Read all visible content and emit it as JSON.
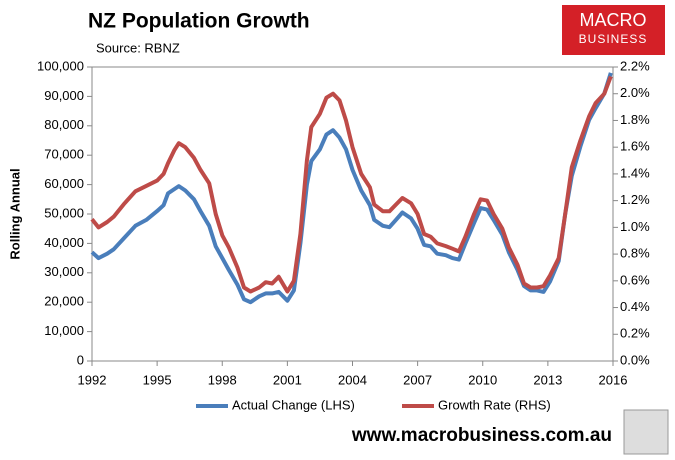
{
  "chart_data": {
    "type": "line",
    "title": "NZ Population Growth",
    "subtitle": "Source: RBNZ",
    "y_label": "Rolling Annual",
    "x": [
      1992.0,
      1992.3,
      1992.7,
      1993.0,
      1993.5,
      1994.0,
      1994.5,
      1995.0,
      1995.3,
      1995.5,
      1995.8,
      1996.0,
      1996.3,
      1996.7,
      1997.0,
      1997.4,
      1997.7,
      1998.0,
      1998.3,
      1998.7,
      1999.0,
      1999.3,
      1999.7,
      2000.0,
      2000.3,
      2000.6,
      2001.0,
      2001.3,
      2001.6,
      2001.9,
      2002.1,
      2002.5,
      2002.8,
      2003.1,
      2003.4,
      2003.7,
      2004.0,
      2004.4,
      2004.8,
      2005.0,
      2005.4,
      2005.7,
      2006.0,
      2006.3,
      2006.7,
      2007.0,
      2007.3,
      2007.6,
      2007.9,
      2008.3,
      2008.6,
      2008.9,
      2009.2,
      2009.6,
      2009.9,
      2010.2,
      2010.5,
      2010.9,
      2011.2,
      2011.6,
      2011.9,
      2012.2,
      2012.5,
      2012.8,
      2013.1,
      2013.5,
      2013.8,
      2014.1,
      2014.5,
      2014.9,
      2015.2,
      2015.6,
      2015.9
    ],
    "series": [
      {
        "name": "Actual Change (LHS)",
        "color": "#4a7ebb",
        "axis": "y",
        "values": [
          37000,
          35000,
          36500,
          38000,
          42000,
          46000,
          48000,
          51000,
          53000,
          57000,
          58500,
          59500,
          58000,
          55000,
          51000,
          46000,
          39000,
          35000,
          31000,
          26000,
          21000,
          20000,
          22000,
          23000,
          23000,
          23500,
          20500,
          24000,
          40000,
          60000,
          68000,
          72000,
          77000,
          78500,
          76000,
          72000,
          65000,
          58000,
          53000,
          48000,
          46000,
          45500,
          48000,
          50500,
          48500,
          45000,
          39500,
          39000,
          36500,
          36000,
          35000,
          34500,
          40000,
          47000,
          52000,
          51500,
          48000,
          43000,
          37000,
          31000,
          25500,
          24000,
          24000,
          23500,
          27000,
          34000,
          50000,
          63000,
          73000,
          82000,
          86000,
          91000,
          98000
        ]
      },
      {
        "name": "Growth Rate (RHS)",
        "color": "#be4b48",
        "axis": "y2",
        "values": [
          1.06,
          1.0,
          1.04,
          1.08,
          1.18,
          1.27,
          1.31,
          1.35,
          1.4,
          1.48,
          1.58,
          1.63,
          1.6,
          1.52,
          1.43,
          1.33,
          1.1,
          0.94,
          0.85,
          0.7,
          0.55,
          0.52,
          0.55,
          0.59,
          0.58,
          0.63,
          0.52,
          0.6,
          0.95,
          1.5,
          1.75,
          1.85,
          1.97,
          2.0,
          1.95,
          1.8,
          1.6,
          1.4,
          1.3,
          1.17,
          1.12,
          1.12,
          1.17,
          1.22,
          1.18,
          1.1,
          0.95,
          0.93,
          0.88,
          0.86,
          0.84,
          0.82,
          0.93,
          1.1,
          1.21,
          1.2,
          1.1,
          0.99,
          0.85,
          0.72,
          0.58,
          0.55,
          0.55,
          0.56,
          0.64,
          0.77,
          1.1,
          1.45,
          1.65,
          1.83,
          1.93,
          2.0,
          2.13
        ]
      }
    ],
    "xlim": [
      1992,
      2016
    ],
    "xticks": [
      1992,
      1995,
      1998,
      2001,
      2004,
      2007,
      2010,
      2013,
      2016
    ],
    "ylim": [
      0,
      100000
    ],
    "yticks": [
      0,
      {
        "value": 10000,
        "label": "10,000"
      },
      {
        "value": 20000,
        "label": "20,000"
      },
      {
        "value": 30000,
        "label": "30,000"
      },
      {
        "value": 40000,
        "label": "40,000"
      },
      {
        "value": 50000,
        "label": "50,000"
      },
      {
        "value": 60000,
        "label": "60,000"
      },
      {
        "value": 70000,
        "label": "70,000"
      },
      {
        "value": 80000,
        "label": "80,000"
      },
      {
        "value": 90000,
        "label": "90,000"
      },
      {
        "value": 100000,
        "label": "100,000"
      }
    ],
    "y2lim": [
      0,
      2.2
    ],
    "y2ticks": [
      {
        "value": 0,
        "label": "0.0%"
      },
      {
        "value": 0.2,
        "label": "0.2%"
      },
      {
        "value": 0.4,
        "label": "0.4%"
      },
      {
        "value": 0.6,
        "label": "0.6%"
      },
      {
        "value": 0.8,
        "label": "0.8%"
      },
      {
        "value": 1.0,
        "label": "1.0%"
      },
      {
        "value": 1.2,
        "label": "1.2%"
      },
      {
        "value": 1.4,
        "label": "1.4%"
      },
      {
        "value": 1.6,
        "label": "1.6%"
      },
      {
        "value": 1.8,
        "label": "1.8%"
      },
      {
        "value": 2.0,
        "label": "2.0%"
      },
      {
        "value": 2.2,
        "label": "2.2%"
      }
    ],
    "grid": false,
    "legend": "bottom"
  },
  "branding": {
    "logo_line1": "MACRO",
    "logo_line2": "BUSINESS",
    "url": "www.macrobusiness.com.au"
  }
}
